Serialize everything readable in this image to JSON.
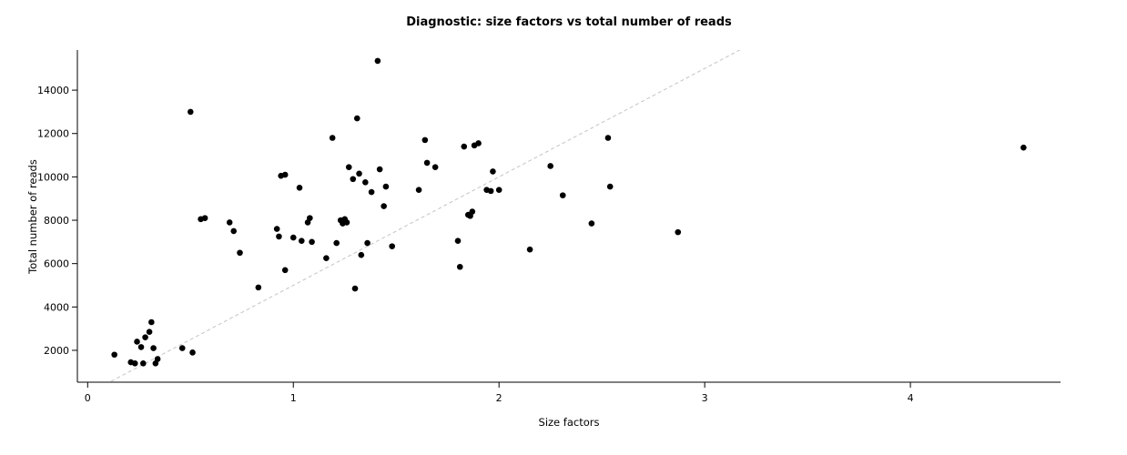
{
  "chart_data": {
    "type": "scatter",
    "title": "Diagnostic: size factors vs total number of reads",
    "xlabel": "Size factors",
    "ylabel": "Total number of reads",
    "xlim": [
      -0.05,
      4.73
    ],
    "ylim": [
      530,
      15850
    ],
    "x_ticks": [
      0,
      1,
      2,
      3,
      4
    ],
    "y_ticks": [
      2000,
      4000,
      6000,
      8000,
      10000,
      12000,
      14000
    ],
    "grid": false,
    "legend": null,
    "point_color": "#000000",
    "trendline": {
      "slope": 5000,
      "intercept": 0,
      "style": "dashed",
      "color": "#c4c4c4"
    },
    "points": [
      [
        0.13,
        1800
      ],
      [
        0.21,
        1450
      ],
      [
        0.23,
        1400
      ],
      [
        0.24,
        2400
      ],
      [
        0.26,
        2150
      ],
      [
        0.27,
        1400
      ],
      [
        0.28,
        2600
      ],
      [
        0.3,
        2850
      ],
      [
        0.31,
        3300
      ],
      [
        0.32,
        2100
      ],
      [
        0.33,
        1400
      ],
      [
        0.34,
        1600
      ],
      [
        0.46,
        2100
      ],
      [
        0.5,
        13000
      ],
      [
        0.51,
        1900
      ],
      [
        0.55,
        8050
      ],
      [
        0.57,
        8100
      ],
      [
        0.69,
        7900
      ],
      [
        0.71,
        7500
      ],
      [
        0.74,
        6500
      ],
      [
        0.83,
        4900
      ],
      [
        0.92,
        7600
      ],
      [
        0.93,
        7250
      ],
      [
        0.94,
        10050
      ],
      [
        0.96,
        10100
      ],
      [
        0.96,
        5700
      ],
      [
        1.0,
        7200
      ],
      [
        1.03,
        9500
      ],
      [
        1.04,
        7050
      ],
      [
        1.07,
        7900
      ],
      [
        1.08,
        8100
      ],
      [
        1.09,
        7000
      ],
      [
        1.16,
        6250
      ],
      [
        1.19,
        11800
      ],
      [
        1.21,
        6950
      ],
      [
        1.23,
        8000
      ],
      [
        1.24,
        7850
      ],
      [
        1.25,
        8050
      ],
      [
        1.26,
        7900
      ],
      [
        1.27,
        10450
      ],
      [
        1.29,
        9900
      ],
      [
        1.3,
        4850
      ],
      [
        1.31,
        12700
      ],
      [
        1.32,
        10150
      ],
      [
        1.33,
        6400
      ],
      [
        1.35,
        9750
      ],
      [
        1.36,
        6950
      ],
      [
        1.38,
        9300
      ],
      [
        1.41,
        15350
      ],
      [
        1.42,
        10350
      ],
      [
        1.44,
        8650
      ],
      [
        1.45,
        9550
      ],
      [
        1.48,
        6800
      ],
      [
        1.61,
        9400
      ],
      [
        1.64,
        11700
      ],
      [
        1.65,
        10650
      ],
      [
        1.69,
        10450
      ],
      [
        1.8,
        7050
      ],
      [
        1.81,
        5850
      ],
      [
        1.83,
        11400
      ],
      [
        1.85,
        8250
      ],
      [
        1.86,
        8200
      ],
      [
        1.87,
        8400
      ],
      [
        1.88,
        11450
      ],
      [
        1.9,
        11550
      ],
      [
        1.94,
        9400
      ],
      [
        1.96,
        9350
      ],
      [
        1.97,
        10250
      ],
      [
        2.0,
        9400
      ],
      [
        2.15,
        6650
      ],
      [
        2.25,
        10500
      ],
      [
        2.31,
        9150
      ],
      [
        2.45,
        7850
      ],
      [
        2.53,
        11800
      ],
      [
        2.54,
        9550
      ],
      [
        2.87,
        7450
      ],
      [
        4.55,
        11350
      ]
    ]
  }
}
